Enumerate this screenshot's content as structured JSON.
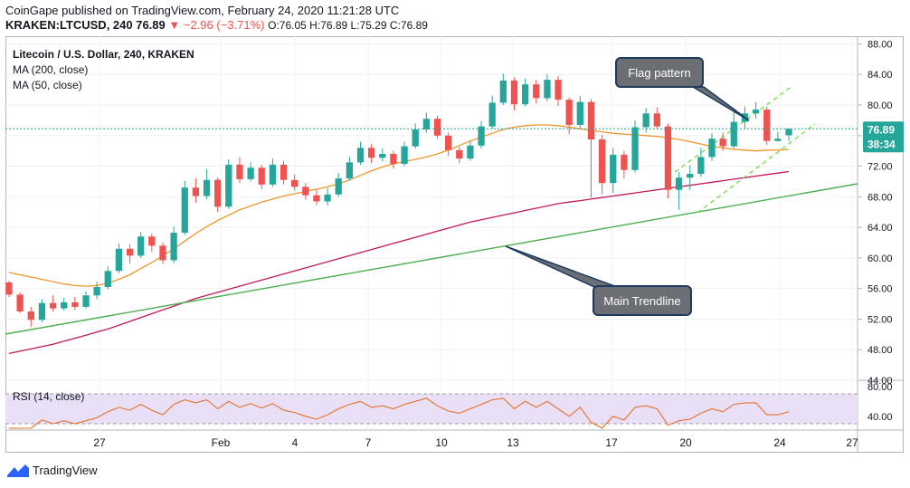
{
  "header": {
    "publisher_line": "CoinGape published on TradingView.com, February 24, 2020 11:21:28 UTC",
    "symbol_line": "KRAKEN:LTCUSD, 240  76.89",
    "change": "▼ −2.96 (−3.71%)",
    "ohlc": "O:76.05 H:76.89 L:75.29 C:76.89"
  },
  "legend": {
    "title": "Litecoin / U.S. Dollar, 240, KRAKEN",
    "ma200": "MA (200, close)",
    "ma50": "MA (50, close)"
  },
  "annotations": {
    "flag": "Flag pattern",
    "trend": "Main Trendline"
  },
  "price_badge": {
    "price": "76.89",
    "countdown": "38:34"
  },
  "rsi": {
    "label": "RSI (14, close)",
    "upper_tick": "80.00",
    "lower_tick": "40.00"
  },
  "footer": {
    "brand": "TradingView"
  },
  "colors": {
    "up": "#26a69a",
    "down": "#ef5350",
    "ma50": "#f0962d",
    "ma200": "#c2185b",
    "trendline": "#4caf50",
    "flag": "#66dd33",
    "rsi_line": "#e8702a",
    "rsi_band": "#e9e0f8",
    "annotation_bg": "#6b6e72",
    "annotation_border": "#1e3a5f",
    "price_badge": "#26a69a"
  },
  "chart_data": {
    "type": "candlestick",
    "y_ticks": [
      "88.00",
      "84.00",
      "80.00",
      "76.00",
      "72.00",
      "68.00",
      "64.00",
      "60.00",
      "56.00",
      "52.00",
      "48.00",
      "44.00"
    ],
    "ylim": [
      44,
      89
    ],
    "x_ticks": [
      "27",
      "Feb",
      "4",
      "7",
      "10",
      "13",
      "17",
      "20",
      "24",
      "27"
    ],
    "candles": [
      [
        56.8,
        55.2,
        57.0,
        54.9
      ],
      [
        55.2,
        53.0,
        55.5,
        52.8
      ],
      [
        53.0,
        51.9,
        53.6,
        51.0
      ],
      [
        51.9,
        54.1,
        54.6,
        51.6
      ],
      [
        54.1,
        53.4,
        55.1,
        53.0
      ],
      [
        53.4,
        54.2,
        54.8,
        53.1
      ],
      [
        54.2,
        53.6,
        54.9,
        53.2
      ],
      [
        53.6,
        55.1,
        55.6,
        53.4
      ],
      [
        55.1,
        56.2,
        56.9,
        54.6
      ],
      [
        56.2,
        58.3,
        58.9,
        55.9
      ],
      [
        58.3,
        61.2,
        61.9,
        58.0
      ],
      [
        61.2,
        60.3,
        61.8,
        59.3
      ],
      [
        60.3,
        62.8,
        63.4,
        60.0
      ],
      [
        62.8,
        61.6,
        63.2,
        60.8
      ],
      [
        61.6,
        59.7,
        62.0,
        59.2
      ],
      [
        59.7,
        63.3,
        64.1,
        59.3
      ],
      [
        63.3,
        69.2,
        70.1,
        63.0
      ],
      [
        69.2,
        68.1,
        70.4,
        67.2
      ],
      [
        68.1,
        70.2,
        71.6,
        67.7
      ],
      [
        70.2,
        66.7,
        70.5,
        66.0
      ],
      [
        66.7,
        72.2,
        72.9,
        66.4
      ],
      [
        72.2,
        70.3,
        73.2,
        69.8
      ],
      [
        70.3,
        71.8,
        72.5,
        70.0
      ],
      [
        71.8,
        69.6,
        72.2,
        69.0
      ],
      [
        69.6,
        72.2,
        73.0,
        69.3
      ],
      [
        72.2,
        70.2,
        72.7,
        69.6
      ],
      [
        70.2,
        69.3,
        70.9,
        68.8
      ],
      [
        69.3,
        68.2,
        69.8,
        67.6
      ],
      [
        68.2,
        67.4,
        68.9,
        66.9
      ],
      [
        67.4,
        68.3,
        69.1,
        66.9
      ],
      [
        68.3,
        70.4,
        71.1,
        68.0
      ],
      [
        70.4,
        72.5,
        73.2,
        70.1
      ],
      [
        72.5,
        74.4,
        75.2,
        72.2
      ],
      [
        74.4,
        73.1,
        74.9,
        72.4
      ],
      [
        73.1,
        73.6,
        74.3,
        72.6
      ],
      [
        73.6,
        72.3,
        74.0,
        71.7
      ],
      [
        72.3,
        74.6,
        75.2,
        72.0
      ],
      [
        74.6,
        76.8,
        77.6,
        74.3
      ],
      [
        76.8,
        78.2,
        79.0,
        76.4
      ],
      [
        78.2,
        76.0,
        78.6,
        75.6
      ],
      [
        76.0,
        74.1,
        76.4,
        73.3
      ],
      [
        74.1,
        73.0,
        74.5,
        72.4
      ],
      [
        73.0,
        74.7,
        75.3,
        72.7
      ],
      [
        74.7,
        77.2,
        77.9,
        74.3
      ],
      [
        77.2,
        80.3,
        81.2,
        76.9
      ],
      [
        80.3,
        83.2,
        84.1,
        80.0
      ],
      [
        83.2,
        80.1,
        83.6,
        79.3
      ],
      [
        80.1,
        82.7,
        83.5,
        79.8
      ],
      [
        82.7,
        80.9,
        83.3,
        80.2
      ],
      [
        80.9,
        83.3,
        84.0,
        80.5
      ],
      [
        83.3,
        80.7,
        83.8,
        79.9
      ],
      [
        80.7,
        77.4,
        81.0,
        76.2
      ],
      [
        77.4,
        80.4,
        81.2,
        77.0
      ],
      [
        80.4,
        75.5,
        80.8,
        67.9
      ],
      [
        75.5,
        69.8,
        76.1,
        68.3
      ],
      [
        69.8,
        73.5,
        74.4,
        68.5
      ],
      [
        73.5,
        71.5,
        74.0,
        70.4
      ],
      [
        71.5,
        77.1,
        78.0,
        71.2
      ],
      [
        77.1,
        78.9,
        79.6,
        76.4
      ],
      [
        78.9,
        77.2,
        79.7,
        76.8
      ],
      [
        77.2,
        68.9,
        77.6,
        67.8
      ],
      [
        68.9,
        70.5,
        71.2,
        66.3
      ],
      [
        70.5,
        71.0,
        72.1,
        68.9
      ],
      [
        71.0,
        73.2,
        74.4,
        70.6
      ],
      [
        73.2,
        75.6,
        76.3,
        72.7
      ],
      [
        75.6,
        74.6,
        76.4,
        74.0
      ],
      [
        74.6,
        77.8,
        79.6,
        74.3
      ],
      [
        77.8,
        78.9,
        79.8,
        76.9
      ],
      [
        78.9,
        79.4,
        80.4,
        78.2
      ],
      [
        79.4,
        75.3,
        79.8,
        74.8
      ],
      [
        75.3,
        75.6,
        76.5,
        75.2
      ],
      [
        76.05,
        76.89,
        76.89,
        75.29
      ]
    ],
    "ma50": [
      58.1,
      57.8,
      57.5,
      57.2,
      56.9,
      56.6,
      56.4,
      56.3,
      56.4,
      56.7,
      57.2,
      57.8,
      58.6,
      59.4,
      60.3,
      61.2,
      62.2,
      63.2,
      64.1,
      64.9,
      65.6,
      66.3,
      66.8,
      67.3,
      67.7,
      68.1,
      68.4,
      68.7,
      69.0,
      69.3,
      69.7,
      70.2,
      70.8,
      71.4,
      71.9,
      72.3,
      72.6,
      72.9,
      73.2,
      73.6,
      74.1,
      74.7,
      75.3,
      75.8,
      76.3,
      76.8,
      77.1,
      77.3,
      77.4,
      77.4,
      77.3,
      77.1,
      76.9,
      76.7,
      76.5,
      76.3,
      76.2,
      76.1,
      76.0,
      75.9,
      75.7,
      75.5,
      75.2,
      74.9,
      74.6,
      74.4,
      74.2,
      74.1,
      74.0,
      74.1,
      74.1,
      74.2
    ],
    "ma200": [
      47.5,
      47.8,
      48.1,
      48.4,
      48.7,
      49.1,
      49.5,
      49.9,
      50.3,
      50.7,
      51.2,
      51.7,
      52.2,
      52.7,
      53.2,
      53.7,
      54.2,
      54.7,
      55.1,
      55.5,
      55.9,
      56.3,
      56.7,
      57.1,
      57.5,
      57.9,
      58.3,
      58.7,
      59.1,
      59.5,
      59.9,
      60.3,
      60.7,
      61.1,
      61.5,
      61.9,
      62.3,
      62.7,
      63.1,
      63.5,
      63.9,
      64.3,
      64.7,
      65.0,
      65.3,
      65.6,
      65.9,
      66.2,
      66.5,
      66.8,
      67.1,
      67.3,
      67.5,
      67.7,
      67.9,
      68.1,
      68.3,
      68.5,
      68.7,
      68.9,
      69.1,
      69.3,
      69.5,
      69.7,
      69.9,
      70.1,
      70.3,
      70.5,
      70.7,
      70.9,
      71.1,
      71.3
    ],
    "rsi": [
      34,
      29,
      30,
      45,
      40,
      44,
      40,
      44,
      48,
      56,
      62,
      58,
      66,
      58,
      52,
      66,
      72,
      68,
      72,
      60,
      70,
      62,
      67,
      61,
      67,
      58,
      55,
      50,
      46,
      52,
      60,
      66,
      70,
      62,
      64,
      60,
      66,
      70,
      74,
      64,
      57,
      54,
      60,
      66,
      72,
      74,
      60,
      70,
      62,
      70,
      60,
      50,
      62,
      42,
      34,
      50,
      45,
      62,
      64,
      60,
      38,
      44,
      46,
      54,
      60,
      56,
      66,
      68,
      68,
      52,
      52,
      56
    ],
    "rsi_ylim": [
      30,
      90
    ]
  }
}
